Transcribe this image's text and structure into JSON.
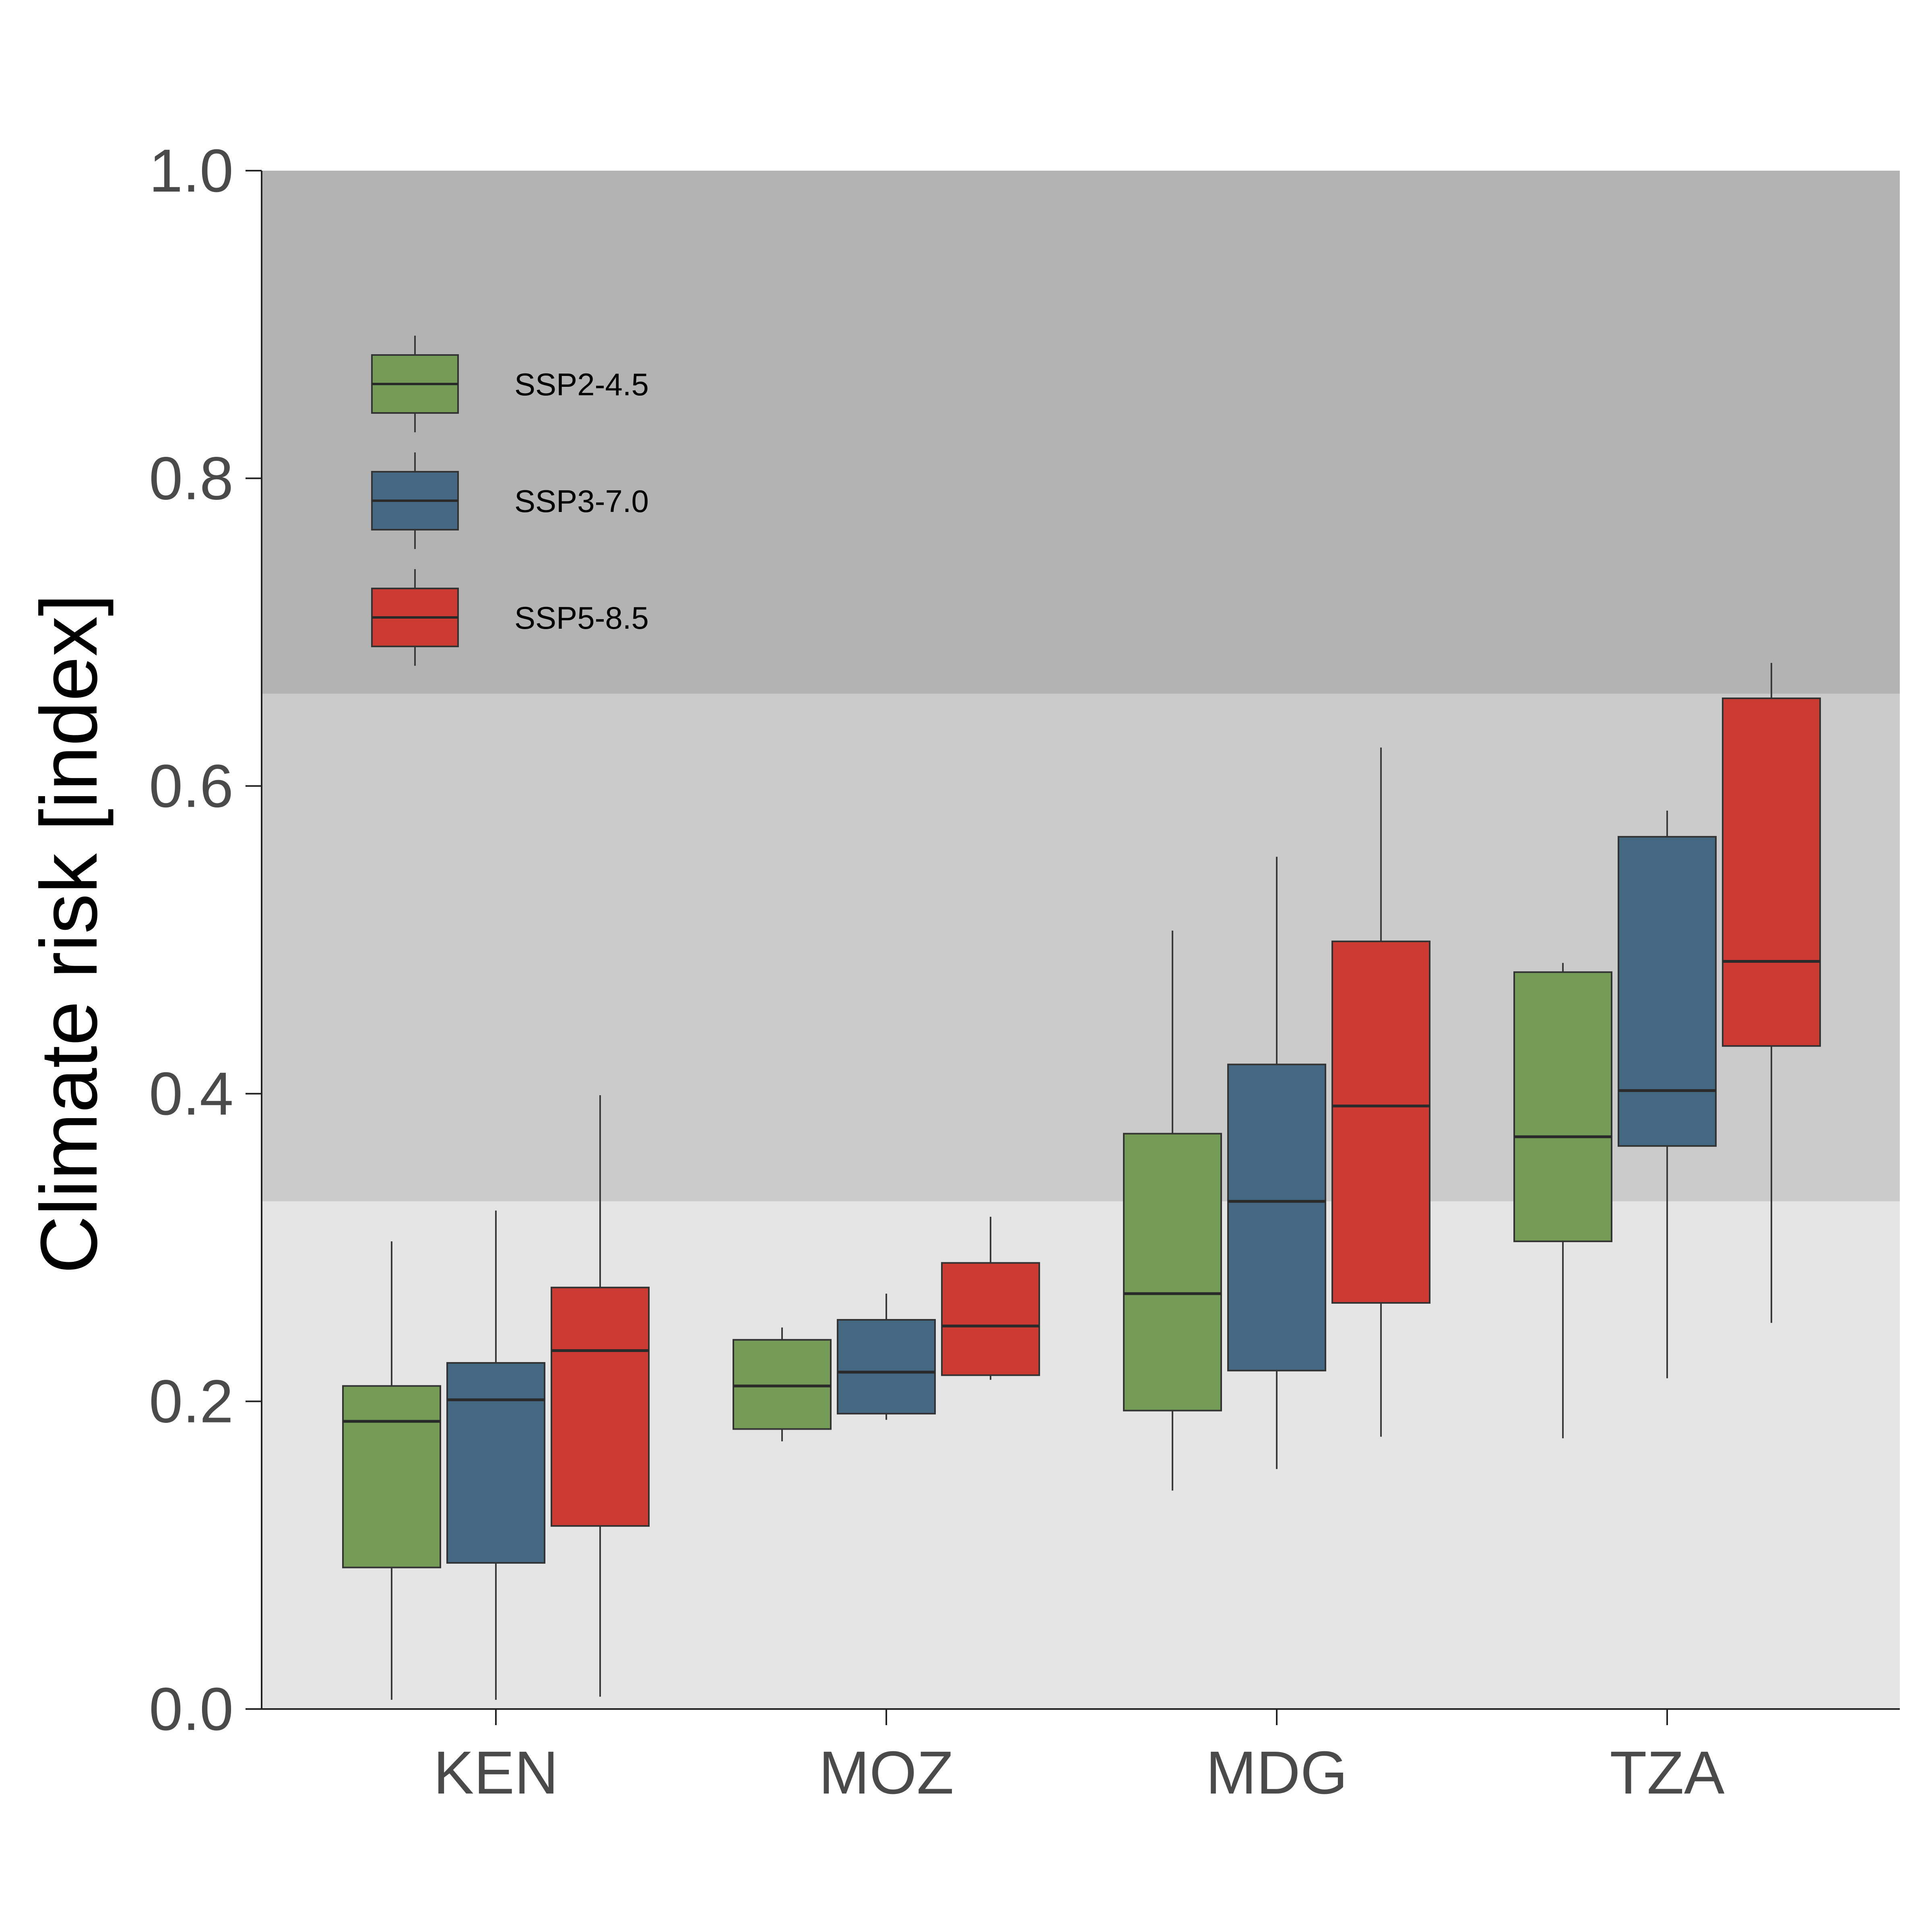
{
  "chart_data": {
    "type": "boxplot",
    "ylabel": "Climate risk [index]",
    "ylim": [
      0,
      1
    ],
    "yticks": [
      "0.0",
      "0.2",
      "0.4",
      "0.6",
      "0.8",
      "1.0"
    ],
    "categories": [
      "KEN",
      "MOZ",
      "MDG",
      "TZA"
    ],
    "bands": [
      {
        "from": 0.0,
        "to": 0.33,
        "color": "#e5e5e5"
      },
      {
        "from": 0.33,
        "to": 0.66,
        "color": "#cbcbcb"
      },
      {
        "from": 0.66,
        "to": 1.0,
        "color": "#b3b3b3"
      }
    ],
    "legend_position": "top-left",
    "series": [
      {
        "name": "SSP2-4.5",
        "color": "#759c57",
        "boxes": [
          {
            "min": 0.006,
            "q1": 0.092,
            "median": 0.187,
            "q3": 0.21,
            "max": 0.304
          },
          {
            "min": 0.174,
            "q1": 0.182,
            "median": 0.21,
            "q3": 0.24,
            "max": 0.248
          },
          {
            "min": 0.142,
            "q1": 0.194,
            "median": 0.27,
            "q3": 0.374,
            "max": 0.506
          },
          {
            "min": 0.176,
            "q1": 0.304,
            "median": 0.372,
            "q3": 0.479,
            "max": 0.485
          }
        ]
      },
      {
        "name": "SSP3-7.0",
        "color": "#446782",
        "boxes": [
          {
            "min": 0.006,
            "q1": 0.095,
            "median": 0.201,
            "q3": 0.225,
            "max": 0.324
          },
          {
            "min": 0.188,
            "q1": 0.192,
            "median": 0.219,
            "q3": 0.253,
            "max": 0.27
          },
          {
            "min": 0.156,
            "q1": 0.22,
            "median": 0.33,
            "q3": 0.419,
            "max": 0.554
          },
          {
            "min": 0.215,
            "q1": 0.366,
            "median": 0.402,
            "q3": 0.567,
            "max": 0.584
          }
        ]
      },
      {
        "name": "SSP5-8.5",
        "color": "#cc3b31",
        "boxes": [
          {
            "min": 0.008,
            "q1": 0.119,
            "median": 0.233,
            "q3": 0.274,
            "max": 0.399
          },
          {
            "min": 0.214,
            "q1": 0.217,
            "median": 0.249,
            "q3": 0.29,
            "max": 0.32
          },
          {
            "min": 0.177,
            "q1": 0.264,
            "median": 0.392,
            "q3": 0.499,
            "max": 0.625
          },
          {
            "min": 0.251,
            "q1": 0.431,
            "median": 0.486,
            "q3": 0.657,
            "max": 0.68
          }
        ]
      }
    ]
  }
}
